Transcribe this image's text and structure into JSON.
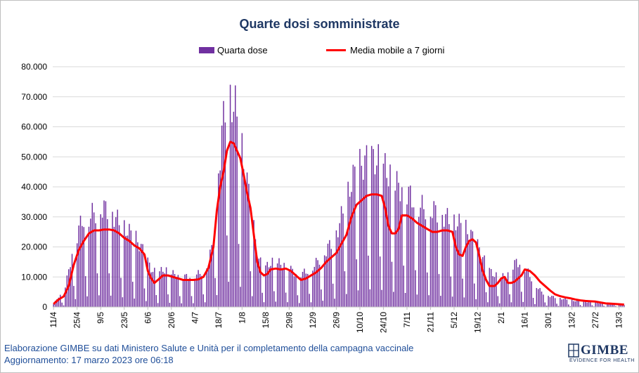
{
  "chart_data": {
    "type": "bar",
    "title": "Quarte dosi somministrate",
    "xlabel": "",
    "ylabel": "",
    "ylim": [
      0,
      80000
    ],
    "y_ticks": [
      "0",
      "10.000",
      "20.000",
      "30.000",
      "40.000",
      "50.000",
      "60.000",
      "70.000",
      "80.000"
    ],
    "x_tick_labels": [
      "11/4",
      "25/4",
      "9/5",
      "23/5",
      "6/6",
      "20/6",
      "4/7",
      "18/7",
      "1/8",
      "15/8",
      "29/8",
      "12/9",
      "26/9",
      "10/10",
      "24/10",
      "7/11",
      "21/11",
      "5/12",
      "19/12",
      "2/1",
      "16/1",
      "30/1",
      "13/2",
      "27/2",
      "13/3"
    ],
    "x_start_date": "2022-04-11",
    "num_days": 340,
    "grid": true,
    "legend_position": "top",
    "series": [
      {
        "name": "Quarta dose",
        "kind": "bar",
        "color": "#7030a0",
        "points": [
          [
            0,
            1000
          ],
          [
            3,
            3500
          ],
          [
            6,
            4500
          ],
          [
            9,
            12000
          ],
          [
            11,
            18000
          ],
          [
            13,
            22000
          ],
          [
            15,
            26000
          ],
          [
            17,
            29000
          ],
          [
            20,
            29500
          ],
          [
            23,
            31000
          ],
          [
            26,
            32000
          ],
          [
            29,
            33000
          ],
          [
            32,
            32500
          ],
          [
            35,
            31000
          ],
          [
            38,
            29000
          ],
          [
            41,
            27000
          ],
          [
            44,
            25500
          ],
          [
            47,
            24000
          ],
          [
            50,
            22000
          ],
          [
            53,
            19000
          ],
          [
            56,
            15000
          ],
          [
            59,
            12000
          ],
          [
            62,
            11000
          ],
          [
            65,
            12500
          ],
          [
            68,
            12000
          ],
          [
            71,
            11000
          ],
          [
            74,
            10500
          ],
          [
            77,
            10000
          ],
          [
            80,
            10200
          ],
          [
            83,
            10500
          ],
          [
            86,
            11000
          ],
          [
            89,
            12000
          ],
          [
            92,
            15000
          ],
          [
            95,
            22000
          ],
          [
            97,
            33000
          ],
          [
            98,
            45000
          ],
          [
            100,
            58000
          ],
          [
            102,
            66000
          ],
          [
            104,
            70000
          ],
          [
            106,
            69000
          ],
          [
            108,
            66000
          ],
          [
            110,
            60000
          ],
          [
            112,
            52000
          ],
          [
            114,
            45000
          ],
          [
            116,
            38000
          ],
          [
            118,
            30000
          ],
          [
            120,
            22000
          ],
          [
            122,
            16000
          ],
          [
            124,
            13500
          ],
          [
            126,
            13000
          ],
          [
            128,
            14500
          ],
          [
            131,
            15000
          ],
          [
            134,
            14500
          ],
          [
            137,
            14000
          ],
          [
            140,
            13000
          ],
          [
            143,
            11500
          ],
          [
            146,
            11000
          ],
          [
            149,
            11500
          ],
          [
            152,
            12500
          ],
          [
            155,
            14000
          ],
          [
            158,
            16000
          ],
          [
            161,
            18000
          ],
          [
            164,
            20500
          ],
          [
            167,
            23000
          ],
          [
            170,
            28000
          ],
          [
            173,
            34000
          ],
          [
            176,
            40000
          ],
          [
            179,
            44500
          ],
          [
            182,
            47000
          ],
          [
            185,
            48500
          ],
          [
            188,
            49000
          ],
          [
            191,
            49500
          ],
          [
            194,
            48000
          ],
          [
            197,
            46000
          ],
          [
            200,
            44000
          ],
          [
            203,
            41000
          ],
          [
            206,
            40000
          ],
          [
            209,
            39000
          ],
          [
            212,
            37000
          ],
          [
            215,
            35000
          ],
          [
            218,
            33500
          ],
          [
            221,
            33000
          ],
          [
            224,
            32500
          ],
          [
            227,
            32000
          ],
          [
            230,
            31000
          ],
          [
            233,
            30000
          ],
          [
            236,
            29000
          ],
          [
            239,
            28500
          ],
          [
            242,
            27500
          ],
          [
            245,
            26000
          ],
          [
            248,
            24000
          ],
          [
            251,
            21500
          ],
          [
            254,
            18000
          ],
          [
            257,
            14000
          ],
          [
            260,
            11500
          ],
          [
            263,
            10500
          ],
          [
            266,
            10000
          ],
          [
            269,
            10200
          ],
          [
            272,
            13000
          ],
          [
            275,
            15000
          ],
          [
            278,
            14500
          ],
          [
            281,
            12500
          ],
          [
            284,
            9500
          ],
          [
            287,
            7000
          ],
          [
            290,
            5000
          ],
          [
            293,
            4000
          ],
          [
            296,
            3500
          ],
          [
            299,
            3100
          ],
          [
            302,
            2800
          ],
          [
            305,
            2500
          ],
          [
            308,
            2200
          ],
          [
            311,
            2000
          ],
          [
            314,
            1800
          ],
          [
            317,
            1700
          ],
          [
            320,
            1600
          ],
          [
            323,
            1400
          ],
          [
            326,
            1200
          ],
          [
            329,
            1050
          ],
          [
            332,
            950
          ],
          [
            335,
            850
          ],
          [
            339,
            750
          ]
        ]
      },
      {
        "name": "Media mobile a 7 giorni",
        "kind": "line",
        "color": "#ff0000",
        "points": [
          [
            0,
            1000
          ],
          [
            3,
            2500
          ],
          [
            6,
            3500
          ],
          [
            9,
            7000
          ],
          [
            12,
            14000
          ],
          [
            15,
            19000
          ],
          [
            18,
            22000
          ],
          [
            21,
            24500
          ],
          [
            24,
            25500
          ],
          [
            27,
            25500
          ],
          [
            30,
            25800
          ],
          [
            33,
            25800
          ],
          [
            36,
            25500
          ],
          [
            39,
            24500
          ],
          [
            42,
            23000
          ],
          [
            45,
            22000
          ],
          [
            48,
            20500
          ],
          [
            51,
            19500
          ],
          [
            54,
            17500
          ],
          [
            56,
            12000
          ],
          [
            58,
            9500
          ],
          [
            60,
            8000
          ],
          [
            62,
            9000
          ],
          [
            65,
            10500
          ],
          [
            68,
            10500
          ],
          [
            71,
            10000
          ],
          [
            74,
            9500
          ],
          [
            77,
            9000
          ],
          [
            80,
            9000
          ],
          [
            83,
            9000
          ],
          [
            86,
            9200
          ],
          [
            89,
            10000
          ],
          [
            92,
            13000
          ],
          [
            95,
            20000
          ],
          [
            97,
            32000
          ],
          [
            99,
            40000
          ],
          [
            101,
            45000
          ],
          [
            103,
            52000
          ],
          [
            105,
            55000
          ],
          [
            107,
            54500
          ],
          [
            109,
            52000
          ],
          [
            111,
            49500
          ],
          [
            113,
            44000
          ],
          [
            115,
            38000
          ],
          [
            117,
            33000
          ],
          [
            119,
            24000
          ],
          [
            121,
            15000
          ],
          [
            123,
            11500
          ],
          [
            125,
            10500
          ],
          [
            127,
            11000
          ],
          [
            129,
            12500
          ],
          [
            132,
            12800
          ],
          [
            135,
            12500
          ],
          [
            138,
            12800
          ],
          [
            141,
            12000
          ],
          [
            144,
            10500
          ],
          [
            147,
            9000
          ],
          [
            150,
            9500
          ],
          [
            153,
            10500
          ],
          [
            156,
            11500
          ],
          [
            159,
            13000
          ],
          [
            162,
            15000
          ],
          [
            165,
            16500
          ],
          [
            168,
            18000
          ],
          [
            171,
            21000
          ],
          [
            174,
            24000
          ],
          [
            177,
            30000
          ],
          [
            180,
            34000
          ],
          [
            183,
            35500
          ],
          [
            186,
            37000
          ],
          [
            189,
            37500
          ],
          [
            192,
            37500
          ],
          [
            195,
            37000
          ],
          [
            197,
            33000
          ],
          [
            199,
            27000
          ],
          [
            201,
            24500
          ],
          [
            203,
            24500
          ],
          [
            205,
            26000
          ],
          [
            207,
            30500
          ],
          [
            210,
            30500
          ],
          [
            213,
            29500
          ],
          [
            216,
            28000
          ],
          [
            219,
            27000
          ],
          [
            222,
            26000
          ],
          [
            225,
            25000
          ],
          [
            228,
            25000
          ],
          [
            231,
            25500
          ],
          [
            234,
            25500
          ],
          [
            237,
            25000
          ],
          [
            239,
            20000
          ],
          [
            241,
            17500
          ],
          [
            243,
            17000
          ],
          [
            245,
            20000
          ],
          [
            247,
            22000
          ],
          [
            249,
            22500
          ],
          [
            251,
            21500
          ],
          [
            253,
            17000
          ],
          [
            255,
            12000
          ],
          [
            257,
            9000
          ],
          [
            259,
            7000
          ],
          [
            262,
            7000
          ],
          [
            264,
            8000
          ],
          [
            266,
            9500
          ],
          [
            268,
            10000
          ],
          [
            270,
            8000
          ],
          [
            272,
            8000
          ],
          [
            274,
            8500
          ],
          [
            276,
            9500
          ],
          [
            278,
            10500
          ],
          [
            280,
            12500
          ],
          [
            283,
            12000
          ],
          [
            286,
            10500
          ],
          [
            289,
            8500
          ],
          [
            292,
            7000
          ],
          [
            295,
            5500
          ],
          [
            298,
            4200
          ],
          [
            301,
            3600
          ],
          [
            304,
            3200
          ],
          [
            307,
            2900
          ],
          [
            310,
            2500
          ],
          [
            313,
            2200
          ],
          [
            316,
            2000
          ],
          [
            319,
            1900
          ],
          [
            322,
            1800
          ],
          [
            325,
            1500
          ],
          [
            328,
            1200
          ],
          [
            331,
            1100
          ],
          [
            334,
            1000
          ],
          [
            337,
            900
          ],
          [
            339,
            800
          ]
        ]
      }
    ]
  },
  "legend": {
    "bar_label": "Quarta dose",
    "line_label": "Media mobile a 7 giorni"
  },
  "footer": {
    "line1": "Elaborazione GIMBE su dati Ministero Salute e Unità per il completamento della campagna vaccinale",
    "line2": "Aggiornamento: 17 marzo 2023 ore 06:18"
  },
  "logo": {
    "name": "GIMBE",
    "tagline": "EVIDENCE FOR HEALTH"
  }
}
